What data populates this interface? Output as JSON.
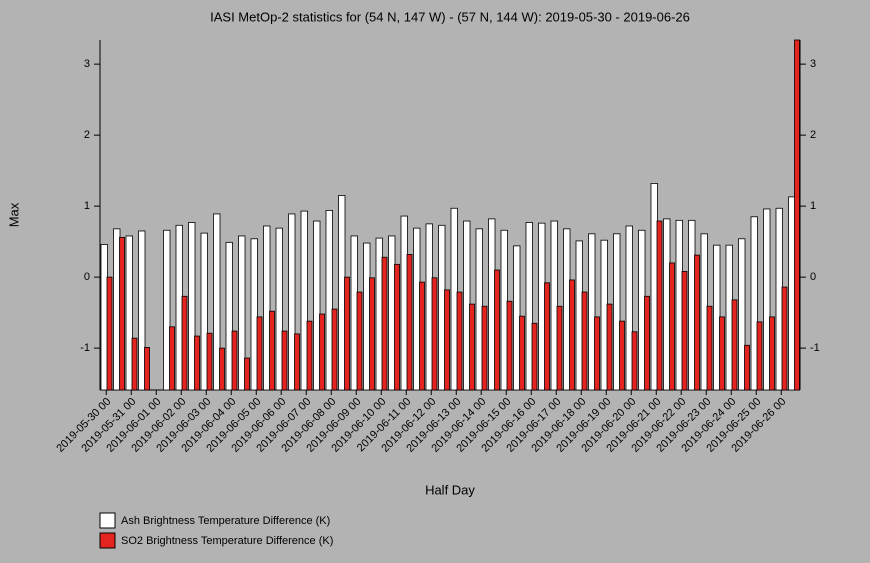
{
  "chart_data": {
    "type": "bar",
    "title": "IASI MetOp-2 statistics for (54 N, 147 W) - (57 N, 144 W): 2019-05-30 - 2019-06-26",
    "x_label": "Half Day",
    "y_label": "Max",
    "categories": [
      "2019-05-30 00",
      null,
      "2019-05-31 00",
      null,
      "2019-06-01 00",
      null,
      "2019-06-02 00",
      null,
      "2019-06-03 00",
      null,
      "2019-06-04 00",
      null,
      "2019-06-05 00",
      null,
      "2019-06-06 00",
      null,
      "2019-06-07 00",
      null,
      "2019-06-08 00",
      null,
      "2019-06-09 00",
      null,
      "2019-06-10 00",
      null,
      "2019-06-11 00",
      null,
      "2019-06-12 00",
      null,
      "2019-06-13 00",
      null,
      "2019-06-14 00",
      null,
      "2019-06-15 00",
      null,
      "2019-06-16 00",
      null,
      "2019-06-17 00",
      null,
      "2019-06-18 00",
      null,
      "2019-06-19 00",
      null,
      "2019-06-20 00",
      null,
      "2019-06-21 00",
      null,
      "2019-06-22 00",
      null,
      "2019-06-23 00",
      null,
      "2019-06-24 00",
      null,
      "2019-06-25 00",
      null,
      "2019-06-26 00",
      null
    ],
    "series": [
      {
        "name": "Ash Brightness Temperature Difference (K)",
        "color": "#ffffff",
        "values": [
          0.46,
          0.68,
          0.58,
          0.65,
          null,
          0.66,
          0.73,
          0.77,
          0.62,
          0.89,
          0.49,
          0.58,
          0.54,
          0.72,
          0.69,
          0.89,
          0.93,
          0.79,
          0.94,
          1.15,
          0.58,
          0.48,
          0.55,
          0.58,
          0.86,
          0.69,
          0.75,
          0.73,
          0.97,
          0.79,
          0.68,
          0.82,
          0.66,
          0.44,
          0.77,
          0.76,
          0.79,
          0.68,
          0.51,
          0.61,
          0.52,
          0.61,
          0.72,
          0.66,
          1.32,
          0.82,
          0.8,
          0.8,
          0.61,
          0.45,
          0.45,
          0.54,
          0.85,
          0.96,
          0.97,
          1.13
        ]
      },
      {
        "name": "SO2 Brightness Temperature Difference (K)",
        "color": "#e3241f",
        "values": [
          0.0,
          0.56,
          -0.86,
          -0.99,
          null,
          -0.7,
          -0.27,
          -0.83,
          -0.79,
          -1.0,
          -0.76,
          -1.14,
          -0.56,
          -0.48,
          -0.76,
          -0.8,
          -0.62,
          -0.52,
          -0.45,
          0.0,
          -0.21,
          -0.01,
          0.28,
          0.18,
          0.32,
          -0.07,
          -0.01,
          -0.18,
          -0.21,
          -0.38,
          -0.41,
          0.1,
          -0.34,
          -0.55,
          -0.65,
          -0.08,
          -0.41,
          -0.04,
          -0.21,
          -0.56,
          -0.38,
          -0.62,
          -0.77,
          -0.27,
          0.79,
          0.2,
          0.08,
          0.31,
          -0.41,
          -0.56,
          -0.32,
          -0.96,
          -0.63,
          -0.56,
          -0.14,
          3.34
        ]
      }
    ],
    "ylim": [
      -1.59,
      3.34
    ],
    "yticks": [
      -1,
      0,
      1,
      2,
      3
    ]
  }
}
